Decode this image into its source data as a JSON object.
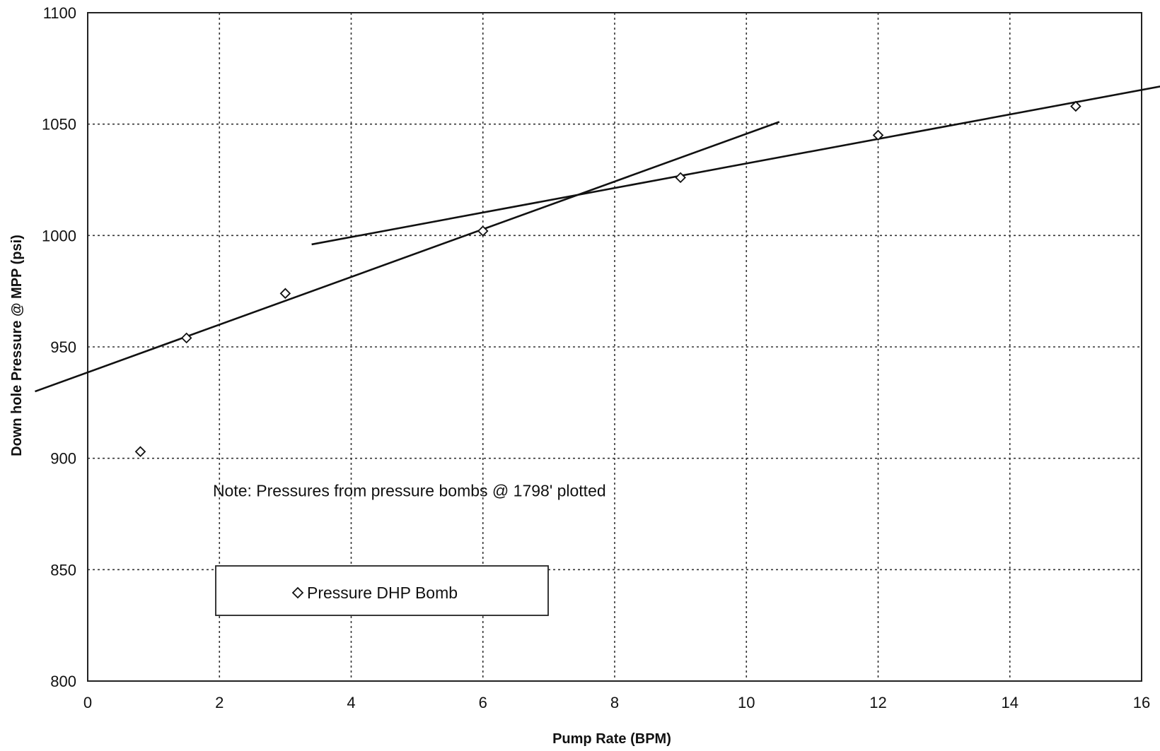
{
  "chart_data": {
    "type": "scatter",
    "xlabel": "Pump Rate (BPM)",
    "ylabel": "Down hole Pressure @ MPP (psi)",
    "xlim": [
      0,
      16
    ],
    "ylim": [
      800,
      1100
    ],
    "x_ticks": [
      0,
      2,
      4,
      6,
      8,
      10,
      12,
      14,
      16
    ],
    "y_ticks": [
      800,
      850,
      900,
      950,
      1000,
      1050,
      1100
    ],
    "x_tick_labels": [
      "0",
      "2",
      "4",
      "6",
      "8",
      "10",
      "12",
      "14",
      "16"
    ],
    "y_tick_labels": [
      "800",
      "850",
      "900",
      "950",
      "1000",
      "1050",
      "1100"
    ],
    "grid": true,
    "legend_position": "lower-left",
    "series": [
      {
        "name": "Pressure DHP Bomb",
        "marker": "diamond",
        "x": [
          0.8,
          1.5,
          3,
          6,
          9,
          12,
          15
        ],
        "y": [
          903,
          954,
          974,
          1002,
          1026,
          1045,
          1058
        ]
      }
    ],
    "trendlines": [
      {
        "from": [
          -0.8,
          930
        ],
        "to": [
          10.5,
          1051
        ]
      },
      {
        "from": [
          3.4,
          996
        ],
        "to": [
          16.3,
          1067
        ]
      }
    ],
    "annotations": [
      {
        "text": "Note:  Pressures from pressure bombs @ 1798' plotted",
        "x": 1.9,
        "y": 883
      }
    ]
  }
}
